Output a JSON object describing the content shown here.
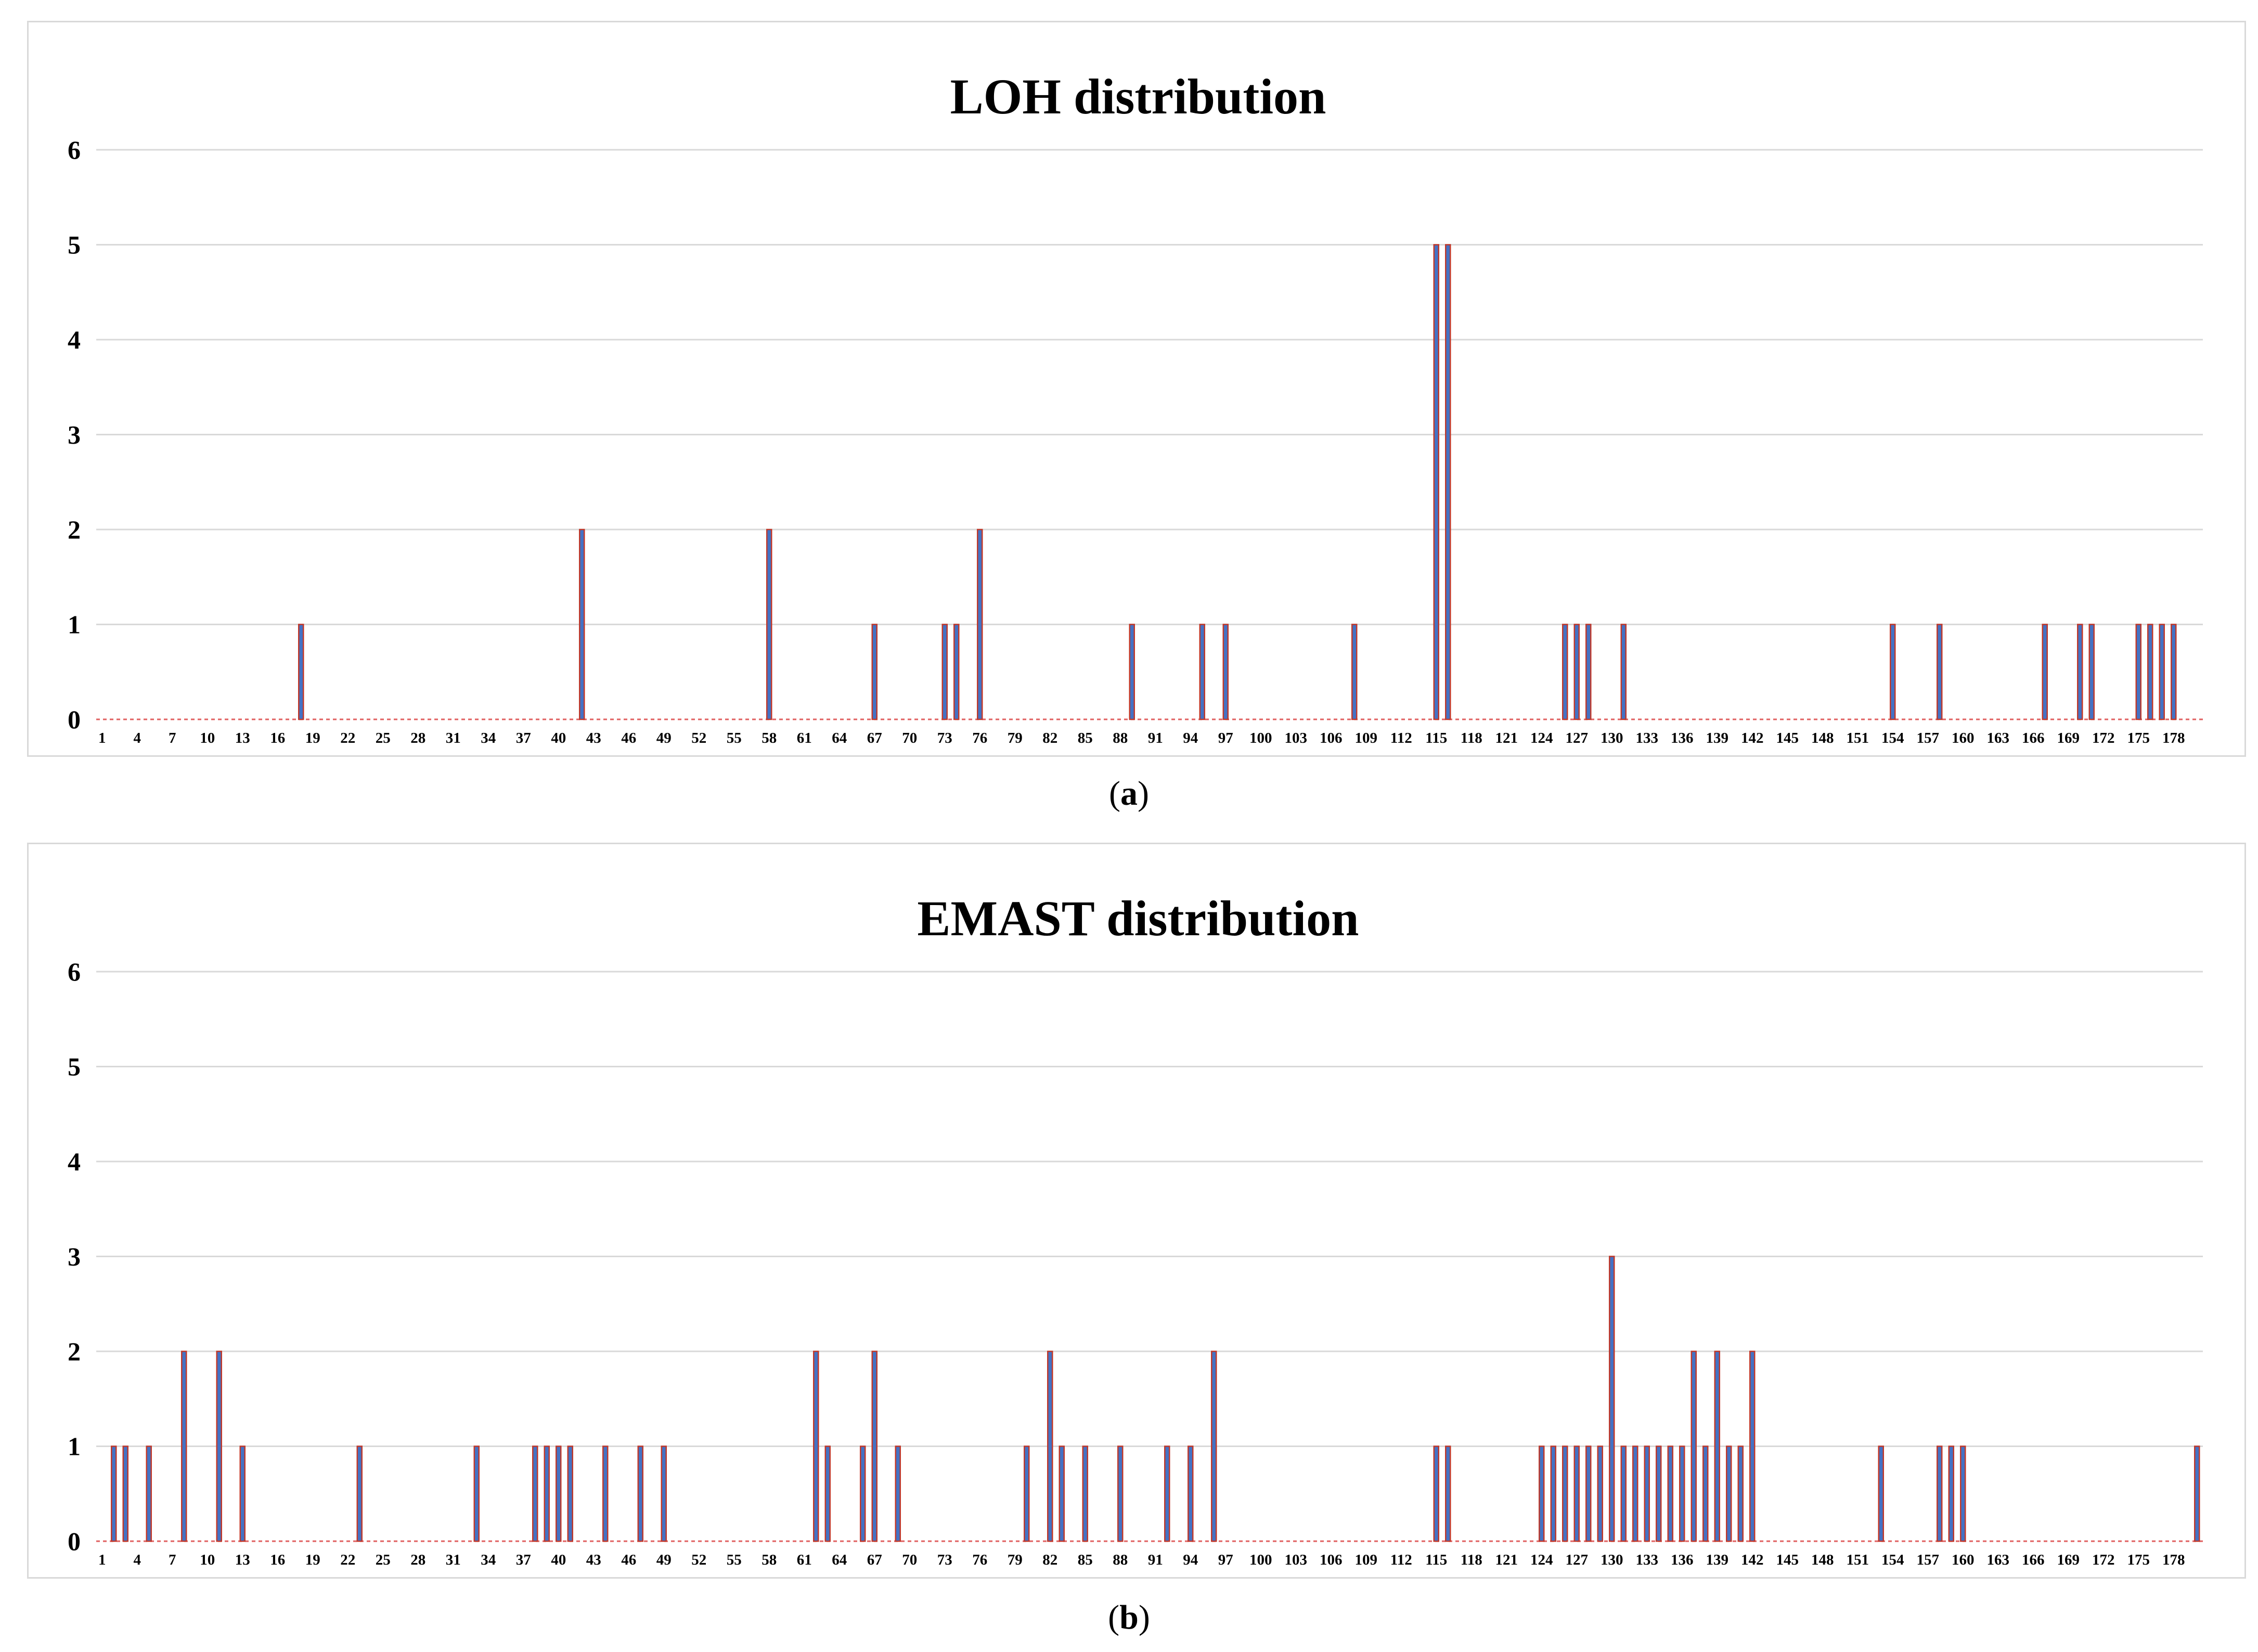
{
  "colors": {
    "bar_blue": "#4472c4",
    "bar_red": "#c0392b",
    "grid": "#d9d9d9",
    "zero_line": "#e06060"
  },
  "captions": {
    "a": "a",
    "b": "b"
  },
  "chart_data": [
    {
      "type": "bar",
      "title": "LOH distribution",
      "xlabel": "",
      "ylabel": "",
      "ylim": [
        0,
        6
      ],
      "yticks": [
        "0",
        "1",
        "2",
        "3",
        "4",
        "5",
        "6"
      ],
      "x_tick_labels": [
        "1",
        "4",
        "7",
        "10",
        "13",
        "16",
        "19",
        "22",
        "25",
        "28",
        "31",
        "34",
        "37",
        "40",
        "43",
        "46",
        "49",
        "52",
        "55",
        "58",
        "61",
        "64",
        "67",
        "70",
        "73",
        "76",
        "79",
        "82",
        "85",
        "88",
        "91",
        "94",
        "97",
        "100",
        "103",
        "106",
        "109",
        "112",
        "115",
        "118",
        "121",
        "124",
        "127",
        "130",
        "133",
        "136",
        "139",
        "142",
        "145",
        "148",
        "151",
        "154",
        "157",
        "160",
        "163",
        "166",
        "169",
        "172",
        "175",
        "178"
      ],
      "n_categories": 180,
      "bars": [
        {
          "x": 18,
          "value": 1
        },
        {
          "x": 42,
          "value": 2
        },
        {
          "x": 58,
          "value": 2
        },
        {
          "x": 67,
          "value": 1
        },
        {
          "x": 73,
          "value": 1
        },
        {
          "x": 74,
          "value": 1
        },
        {
          "x": 76,
          "value": 2
        },
        {
          "x": 89,
          "value": 1
        },
        {
          "x": 95,
          "value": 1
        },
        {
          "x": 97,
          "value": 1
        },
        {
          "x": 108,
          "value": 1
        },
        {
          "x": 115,
          "value": 5
        },
        {
          "x": 116,
          "value": 5
        },
        {
          "x": 126,
          "value": 1
        },
        {
          "x": 127,
          "value": 1
        },
        {
          "x": 128,
          "value": 1
        },
        {
          "x": 131,
          "value": 1
        },
        {
          "x": 154,
          "value": 1
        },
        {
          "x": 158,
          "value": 1
        },
        {
          "x": 167,
          "value": 1
        },
        {
          "x": 170,
          "value": 1
        },
        {
          "x": 171,
          "value": 1
        },
        {
          "x": 175,
          "value": 1
        },
        {
          "x": 176,
          "value": 1
        },
        {
          "x": 177,
          "value": 1
        },
        {
          "x": 178,
          "value": 1
        }
      ]
    },
    {
      "type": "bar",
      "title": "EMAST distribution",
      "xlabel": "",
      "ylabel": "",
      "ylim": [
        0,
        6
      ],
      "yticks": [
        "0",
        "1",
        "2",
        "3",
        "4",
        "5",
        "6"
      ],
      "x_tick_labels": [
        "1",
        "4",
        "7",
        "10",
        "13",
        "16",
        "19",
        "22",
        "25",
        "28",
        "31",
        "34",
        "37",
        "40",
        "43",
        "46",
        "49",
        "52",
        "55",
        "58",
        "61",
        "64",
        "67",
        "70",
        "73",
        "76",
        "79",
        "82",
        "85",
        "88",
        "91",
        "94",
        "97",
        "100",
        "103",
        "106",
        "109",
        "112",
        "115",
        "118",
        "121",
        "124",
        "127",
        "130",
        "133",
        "136",
        "139",
        "142",
        "145",
        "148",
        "151",
        "154",
        "157",
        "160",
        "163",
        "166",
        "169",
        "172",
        "175",
        "178"
      ],
      "n_categories": 180,
      "bars": [
        {
          "x": 2,
          "value": 1
        },
        {
          "x": 3,
          "value": 1
        },
        {
          "x": 5,
          "value": 1
        },
        {
          "x": 8,
          "value": 2
        },
        {
          "x": 11,
          "value": 2
        },
        {
          "x": 13,
          "value": 1
        },
        {
          "x": 23,
          "value": 1
        },
        {
          "x": 33,
          "value": 1
        },
        {
          "x": 38,
          "value": 1
        },
        {
          "x": 39,
          "value": 1
        },
        {
          "x": 40,
          "value": 1
        },
        {
          "x": 41,
          "value": 1
        },
        {
          "x": 44,
          "value": 1
        },
        {
          "x": 47,
          "value": 1
        },
        {
          "x": 49,
          "value": 1
        },
        {
          "x": 62,
          "value": 2
        },
        {
          "x": 63,
          "value": 1
        },
        {
          "x": 66,
          "value": 1
        },
        {
          "x": 67,
          "value": 2
        },
        {
          "x": 69,
          "value": 1
        },
        {
          "x": 80,
          "value": 1
        },
        {
          "x": 82,
          "value": 2
        },
        {
          "x": 83,
          "value": 1
        },
        {
          "x": 85,
          "value": 1
        },
        {
          "x": 88,
          "value": 1
        },
        {
          "x": 92,
          "value": 1
        },
        {
          "x": 94,
          "value": 1
        },
        {
          "x": 96,
          "value": 2
        },
        {
          "x": 115,
          "value": 1
        },
        {
          "x": 116,
          "value": 1
        },
        {
          "x": 124,
          "value": 1
        },
        {
          "x": 125,
          "value": 1
        },
        {
          "x": 126,
          "value": 1
        },
        {
          "x": 127,
          "value": 1
        },
        {
          "x": 128,
          "value": 1
        },
        {
          "x": 129,
          "value": 1
        },
        {
          "x": 130,
          "value": 3
        },
        {
          "x": 131,
          "value": 1
        },
        {
          "x": 132,
          "value": 1
        },
        {
          "x": 133,
          "value": 1
        },
        {
          "x": 134,
          "value": 1
        },
        {
          "x": 135,
          "value": 1
        },
        {
          "x": 136,
          "value": 1
        },
        {
          "x": 137,
          "value": 2
        },
        {
          "x": 138,
          "value": 1
        },
        {
          "x": 139,
          "value": 2
        },
        {
          "x": 140,
          "value": 1
        },
        {
          "x": 141,
          "value": 1
        },
        {
          "x": 142,
          "value": 2
        },
        {
          "x": 153,
          "value": 1
        },
        {
          "x": 158,
          "value": 1
        },
        {
          "x": 159,
          "value": 1
        },
        {
          "x": 160,
          "value": 1
        },
        {
          "x": 180,
          "value": 1
        }
      ]
    }
  ]
}
